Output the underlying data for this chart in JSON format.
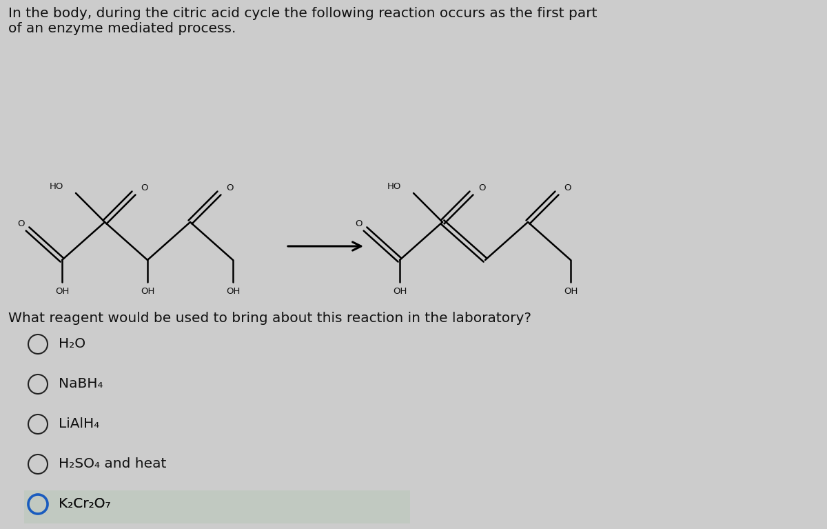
{
  "background_color": "#cccccc",
  "title_line1": "In the body, during the citric acid cycle the following reaction occurs as the first part",
  "title_line2": "of an enzyme mediated process.",
  "question": "What reagent would be used to bring about this reaction in the laboratory?",
  "options": [
    "H₂O",
    "NaBH₄",
    "LiAlH₄",
    "H₂SO₄ and heat",
    "K₂Cr₂O₇"
  ],
  "selected_option": 4,
  "text_color": "#111111",
  "circle_color": "#222222",
  "selected_circle_color": "#1a5cbf",
  "font_size_title": 14.5,
  "font_size_options": 14.5,
  "font_size_question": 14.5,
  "font_size_mol": 9.5
}
